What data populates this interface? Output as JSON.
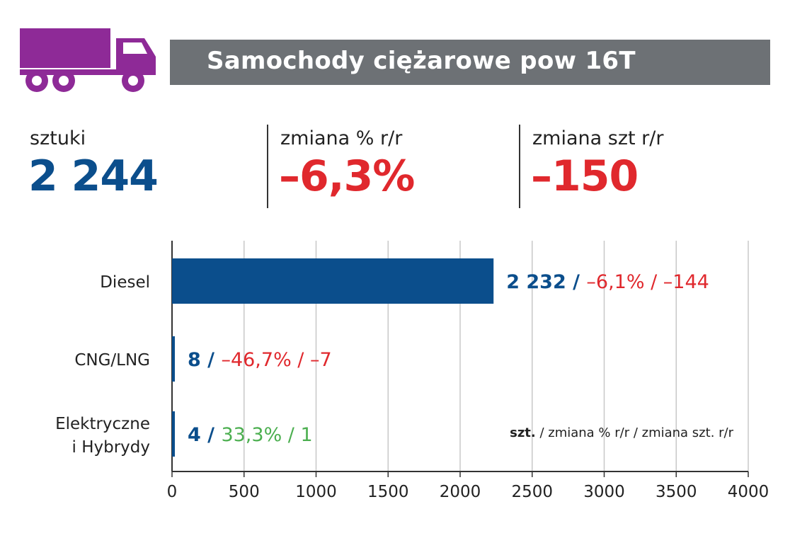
{
  "header": {
    "title": "Samochody ciężarowe pow 16T",
    "icon": "truck-icon",
    "icon_color": "#8e2a97",
    "bar_color": "#6d7175"
  },
  "stats": {
    "units": {
      "label": "sztuki",
      "value": "2 244",
      "color": "#0b4e8c"
    },
    "pct_change": {
      "label": "zmiana % r/r",
      "value": "–6,3%",
      "color": "#e0282d"
    },
    "unit_change": {
      "label": "zmiana szt r/r",
      "value": "–150",
      "color": "#e0282d"
    }
  },
  "chart_data": {
    "type": "bar",
    "orientation": "horizontal",
    "categories": [
      "Diesel",
      "CNG/LNG",
      "Elektryczne i Hybrydy"
    ],
    "category_lines": [
      [
        "Diesel"
      ],
      [
        "CNG/LNG"
      ],
      [
        "Elektryczne",
        "i Hybrydy"
      ]
    ],
    "values": [
      2232,
      8,
      4
    ],
    "data_labels": [
      {
        "units": "2 232 /",
        "rest": "–6,1% / –144",
        "rest_color": "#e0282d"
      },
      {
        "units": "8 /",
        "rest": "–46,7% / –7",
        "rest_color": "#e0282d"
      },
      {
        "units": "4 /",
        "rest": "33,3% / 1",
        "rest_color": "#4caf50"
      }
    ],
    "xlim": [
      0,
      4000
    ],
    "xticks": [
      0,
      500,
      1000,
      1500,
      2000,
      2500,
      3000,
      3500,
      4000
    ],
    "grid": true,
    "bar_color": "#0b4e8c",
    "legend_note": {
      "bold": "szt.",
      "rest": " / zmiana % r/r / zmiana szt. r/r"
    }
  }
}
